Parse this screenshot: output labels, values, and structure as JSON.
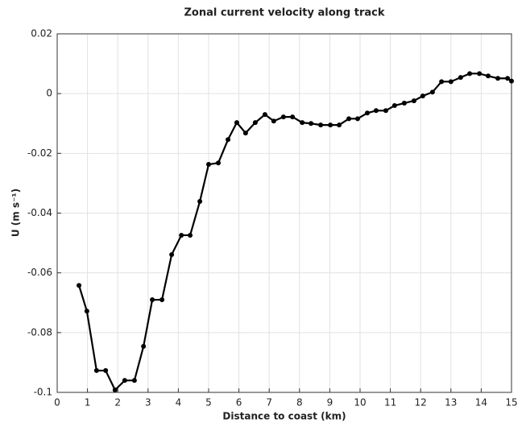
{
  "chart_data": {
    "type": "line",
    "title": "Zonal current velocity along track",
    "x_label": "Distance to coast (km)",
    "y_label": "U (m s⁻¹)",
    "x": [
      0.72,
      0.98,
      1.3,
      1.6,
      1.91,
      2.23,
      2.55,
      2.85,
      3.14,
      3.46,
      3.78,
      4.1,
      4.39,
      4.71,
      5.0,
      5.32,
      5.64,
      5.93,
      6.22,
      6.54,
      6.86,
      7.15,
      7.47,
      7.77,
      8.09,
      8.38,
      8.7,
      9.02,
      9.31,
      9.63,
      9.92,
      10.24,
      10.53,
      10.85,
      11.14,
      11.46,
      11.78,
      12.07,
      12.39,
      12.69,
      13.0,
      13.32,
      13.62,
      13.94,
      14.23,
      14.55,
      14.87,
      15.0
    ],
    "series": [
      {
        "name": "U",
        "color": "#000000",
        "values": [
          -0.0642,
          -0.0728,
          -0.0927,
          -0.0927,
          -0.0992,
          -0.096,
          -0.096,
          -0.0846,
          -0.069,
          -0.069,
          -0.0539,
          -0.0474,
          -0.0474,
          -0.0361,
          -0.0237,
          -0.0232,
          -0.0154,
          -0.0097,
          -0.0132,
          -0.0097,
          -0.007,
          -0.0092,
          -0.0078,
          -0.0078,
          -0.0097,
          -0.01,
          -0.0105,
          -0.0105,
          -0.0105,
          -0.0084,
          -0.0084,
          -0.0065,
          -0.0057,
          -0.0057,
          -0.004,
          -0.0032,
          -0.0024,
          -0.0008,
          0.0005,
          0.004,
          0.004,
          0.0054,
          0.0067,
          0.0067,
          0.0059,
          0.0051,
          0.0051,
          0.0042
        ]
      }
    ],
    "xlim": [
      0,
      15
    ],
    "xticks": [
      0,
      1,
      2,
      3,
      4,
      5,
      6,
      7,
      8,
      9,
      10,
      11,
      12,
      13,
      14,
      15
    ],
    "ylim": [
      -0.1,
      0.02
    ],
    "yticks": [
      -0.1,
      -0.08,
      -0.06,
      -0.04,
      -0.02,
      0,
      0.02
    ],
    "grid": true
  }
}
